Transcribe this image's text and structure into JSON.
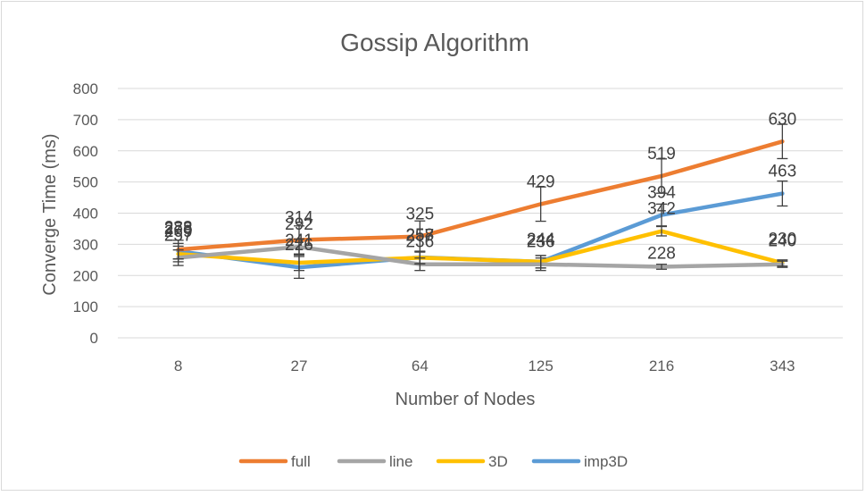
{
  "chart_data": {
    "type": "line",
    "title": "Gossip Algorithm",
    "xlabel": "Number of Nodes",
    "ylabel": "Converge Time (ms)",
    "categories": [
      "8",
      "27",
      "64",
      "125",
      "216",
      "343"
    ],
    "ylim": [
      0,
      800
    ],
    "yticks": [
      0,
      100,
      200,
      300,
      400,
      500,
      600,
      700,
      800
    ],
    "grid": true,
    "legend_position": "bottom",
    "series": [
      {
        "name": "full",
        "color": "#ED7D31",
        "values": [
          283,
          314,
          325,
          429,
          519,
          630
        ],
        "errors": [
          30,
          45,
          50,
          55,
          55,
          55
        ],
        "labels_shown": [
          "283",
          "314",
          "325",
          "429",
          "519",
          "630"
        ]
      },
      {
        "name": "line",
        "color": "#A5A5A5",
        "values": [
          257,
          292,
          236,
          236,
          228,
          236
        ],
        "errors": [
          25,
          25,
          20,
          20,
          8,
          10
        ],
        "labels_shown": [
          "257",
          "292",
          "236",
          "236",
          "",
          ""
        ]
      },
      {
        "name": "3D",
        "color": "#FFC000",
        "values": [
          269,
          241,
          257,
          244,
          342,
          240
        ],
        "errors": [
          25,
          25,
          20,
          20,
          15,
          10
        ],
        "labels_shown": [
          "269",
          "241",
          "257",
          "244",
          "342",
          "240"
        ]
      },
      {
        "name": "imp3D",
        "color": "#5B9BD5",
        "values": [
          278,
          226,
          258,
          244,
          394,
          463
        ],
        "errors": [
          25,
          35,
          20,
          20,
          35,
          40
        ],
        "labels_shown": [
          "278",
          "226",
          "258",
          "244",
          "394",
          "463"
        ]
      }
    ],
    "extra_labels": [
      {
        "category_index": 4,
        "series": "3D",
        "text": "228",
        "placement": "below"
      },
      {
        "category_index": 5,
        "series": "3D",
        "text": "230",
        "placement": "above"
      }
    ]
  }
}
